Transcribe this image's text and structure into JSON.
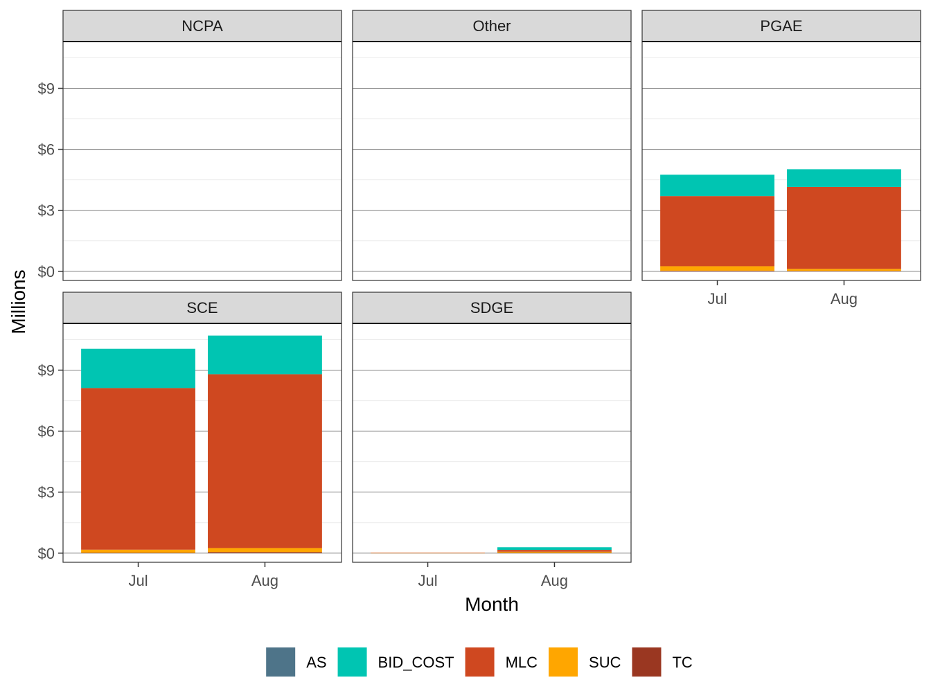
{
  "chart_data": {
    "type": "bar",
    "stacked": true,
    "faceted": true,
    "xlabel": "Month",
    "ylabel": "Millions",
    "y_tick_labels": [
      "$0",
      "$3",
      "$6",
      "$9"
    ],
    "y_ticks": [
      0,
      3,
      6,
      9
    ],
    "ylim": [
      -0.45,
      11.3
    ],
    "categories": [
      "Jul",
      "Aug"
    ],
    "series_order": [
      "AS",
      "BID_COST",
      "MLC",
      "SUC",
      "TC"
    ],
    "colors": {
      "AS": "#4e7489",
      "BID_COST": "#00c5b2",
      "MLC": "#cf4820",
      "SUC": "#ffa600",
      "TC": "#9a3721"
    },
    "stack_order_bottom_to_top": [
      "TC",
      "SUC",
      "MLC",
      "BID_COST",
      "AS"
    ],
    "grid": true,
    "legend_position": "bottom",
    "panels": [
      {
        "name": "NCPA",
        "show_x_axis": false,
        "values": {
          "Jul": {},
          "Aug": {}
        }
      },
      {
        "name": "Other",
        "show_x_axis": false,
        "values": {
          "Jul": {},
          "Aug": {}
        }
      },
      {
        "name": "PGAE",
        "show_x_axis": true,
        "values": {
          "Jul": {
            "TC": 0.03,
            "SUC": 0.22,
            "MLC": 3.45,
            "BID_COST": 1.05,
            "AS": 0
          },
          "Aug": {
            "TC": 0.02,
            "SUC": 0.1,
            "MLC": 4.03,
            "BID_COST": 0.87,
            "AS": 0
          }
        }
      },
      {
        "name": "SCE",
        "show_x_axis": true,
        "values": {
          "Jul": {
            "TC": 0.02,
            "SUC": 0.15,
            "MLC": 7.95,
            "BID_COST": 1.93,
            "AS": 0
          },
          "Aug": {
            "TC": 0.05,
            "SUC": 0.2,
            "MLC": 8.55,
            "BID_COST": 1.9,
            "AS": 0
          }
        }
      },
      {
        "name": "SDGE",
        "show_x_axis": true,
        "values": {
          "Jul": {
            "TC": 0.0,
            "SUC": 0.01,
            "MLC": 0.01,
            "BID_COST": 0.0,
            "AS": 0
          },
          "Aug": {
            "TC": 0.02,
            "SUC": 0.05,
            "MLC": 0.09,
            "BID_COST": 0.13,
            "AS": 0
          }
        }
      }
    ]
  }
}
